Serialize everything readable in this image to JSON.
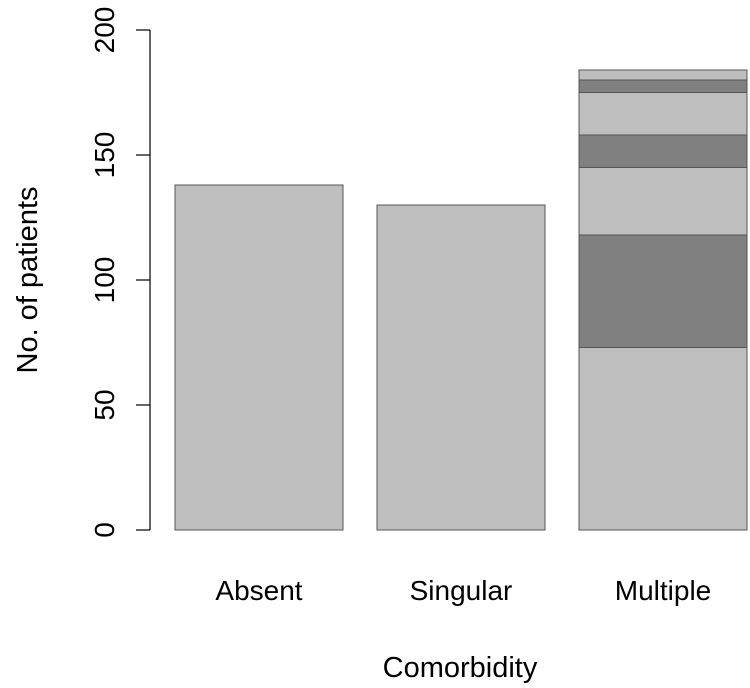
{
  "chart_data": {
    "type": "bar",
    "stacked": true,
    "title": "",
    "xlabel": "Comorbidity",
    "ylabel": "No. of patients",
    "categories": [
      "Absent",
      "Singular",
      "Multiple"
    ],
    "stacks": [
      [
        138
      ],
      [
        130
      ],
      [
        73,
        45,
        27,
        13,
        17,
        5,
        4
      ]
    ],
    "segment_colors": [
      "#bebebe",
      "#808080",
      "#bebebe",
      "#808080",
      "#bebebe",
      "#808080",
      "#bebebe"
    ],
    "ylim": [
      0,
      200
    ],
    "yticks": [
      "0",
      "50",
      "100",
      "150",
      "200"
    ],
    "grid": false
  }
}
